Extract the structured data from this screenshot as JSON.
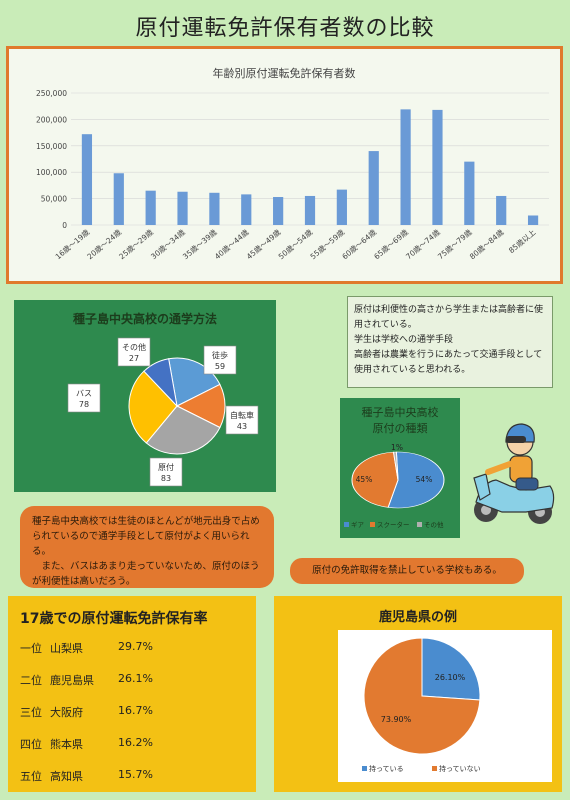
{
  "page_title": "原付運転免許保有者数の比較",
  "age_chart": {
    "chart_data": {
      "type": "bar",
      "title": "年齢別原付運転免許保有者数",
      "categories": [
        "16歳～19歳",
        "20歳～24歳",
        "25歳～29歳",
        "30歳～34歳",
        "35歳～39歳",
        "40歳～44歳",
        "45歳～49歳",
        "50歳～54歳",
        "55歳～59歳",
        "60歳～64歳",
        "65歳～69歳",
        "70歳～74歳",
        "75歳～79歳",
        "80歳～84歳",
        "85歳以上"
      ],
      "values": [
        172000,
        98000,
        65000,
        63000,
        61000,
        58000,
        53000,
        55000,
        67000,
        140000,
        219000,
        218000,
        120000,
        55000,
        18000
      ],
      "ylim": [
        0,
        250000
      ],
      "yticks": [
        "250,000",
        "200,000",
        "150,000",
        "100,000",
        "50,000",
        "0"
      ],
      "color": "#6a9ad6"
    }
  },
  "right_note": {
    "text": "原付は利便性の高さから学生または高齢者に使用されている。\n学生は学校への通学手段\n高齢者は農業を行うにあたって交通手段として使用されていると思われる。"
  },
  "commute_chart": {
    "chart_data": {
      "type": "pie",
      "title": "種子島中央高校の通学方法",
      "labels": [
        "徒歩",
        "自転車",
        "原付",
        "バス",
        "その他"
      ],
      "values": [
        59,
        43,
        83,
        78,
        27
      ],
      "colors": [
        "#5b9bd5",
        "#ed7d31",
        "#a5a5a5",
        "#ffc000",
        "#4472c4"
      ]
    }
  },
  "moped_type_chart": {
    "title_line1": "種子島中央高校",
    "title_line2": "原付の種類",
    "chart_data": {
      "type": "pie",
      "labels": [
        "ギア",
        "スクーター",
        "その他"
      ],
      "values": [
        54,
        45,
        1
      ],
      "value_labels": [
        "54%",
        "45%",
        "1%"
      ],
      "colors": [
        "#4a8ccf",
        "#e27a30",
        "#b0b0b0"
      ]
    }
  },
  "left_note": {
    "text": "種子島中央高校では生徒のほとんどが地元出身で占められているので通学手段として原付がよく用いられる。\n　また、バスはあまり走っていないため、原付のほうが利便性は高いだろう。"
  },
  "ban_note": {
    "text": "原付の免許取得を禁止している学校もある。"
  },
  "ranking": {
    "heading": "17歳での原付運転免許保有率",
    "rows": [
      {
        "rank": "一位",
        "pref": "山梨県",
        "rate": "29.7%"
      },
      {
        "rank": "二位",
        "pref": "鹿児島県",
        "rate": "26.1%"
      },
      {
        "rank": "三位",
        "pref": "大阪府",
        "rate": "16.7%"
      },
      {
        "rank": "四位",
        "pref": "熊本県",
        "rate": "16.2%"
      },
      {
        "rank": "五位",
        "pref": "高知県",
        "rate": "15.7%"
      }
    ]
  },
  "kagoshima": {
    "heading": "鹿児島県の例",
    "chart_data": {
      "type": "pie",
      "labels": [
        "持っている",
        "持っていない"
      ],
      "values": [
        26.1,
        73.9
      ],
      "value_labels": [
        "26.10%",
        "73.90%"
      ],
      "colors": [
        "#4a8ccf",
        "#e27a30"
      ]
    }
  }
}
